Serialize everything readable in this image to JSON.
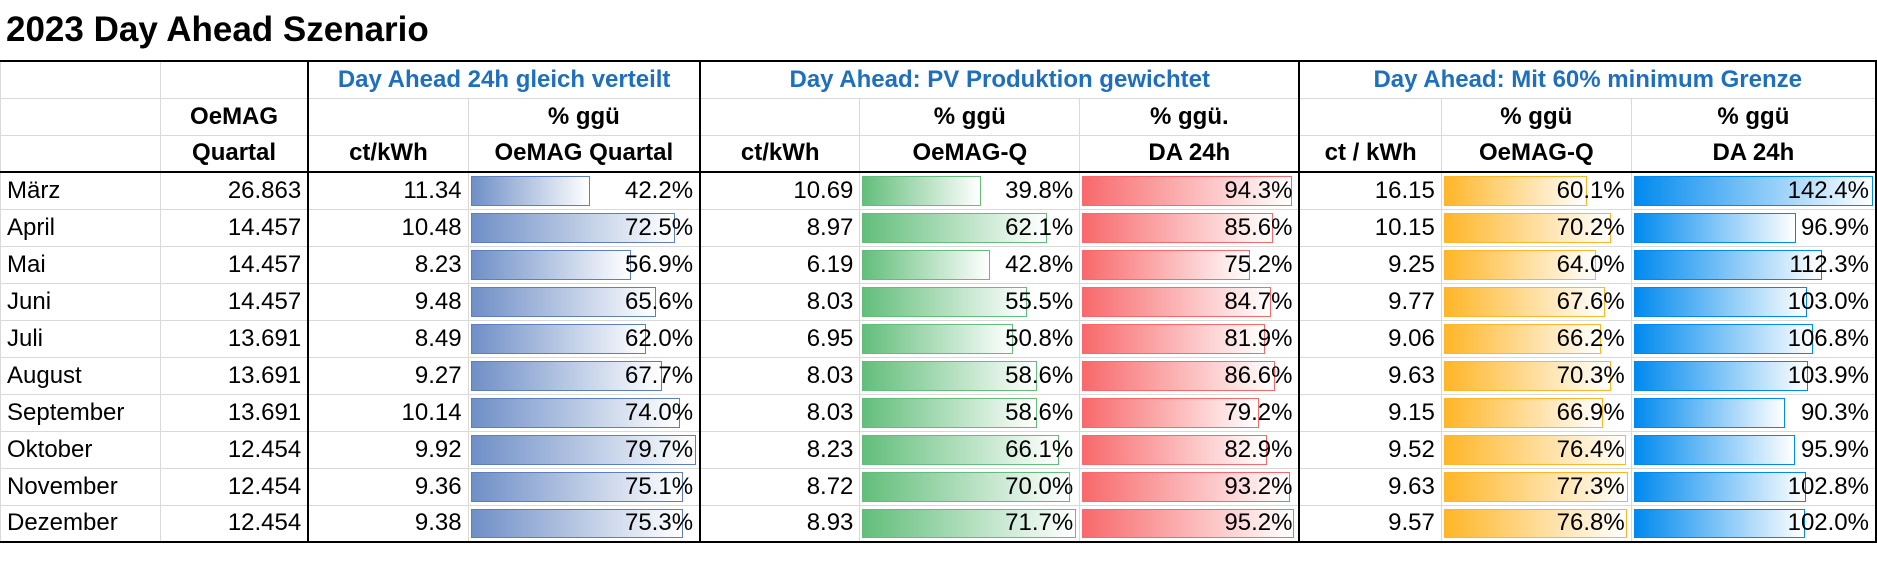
{
  "title": "2023 Day Ahead Szenario",
  "header": {
    "group1": "Day Ahead 24h gleich verteilt",
    "group2": "Day Ahead: PV Produktion gewichtet",
    "group3": "Day Ahead: Mit 60% minimum Grenze",
    "oemag_1": "OeMAG",
    "oemag_2": "Quartal",
    "g1_c1": "ct/kWh",
    "g1_c2a": "% ggü",
    "g1_c2b": "OeMAG Quartal",
    "g2_c1": "ct/kWh",
    "g2_c2a": "% ggü",
    "g2_c2b": "OeMAG-Q",
    "g2_c3a": "% ggü.",
    "g2_c3b": "DA 24h",
    "g3_c1": "ct / kWh",
    "g3_c2a": "% ggü",
    "g3_c2b": "OeMAG-Q",
    "g3_c3a": "% ggü",
    "g3_c3b": "DA 24h"
  },
  "bar_colors": {
    "g1": "#6f8fc7",
    "g2a": "#63be7b",
    "g2b": "#f8696b",
    "g3a": "#ffb628",
    "g3b": "#008aef"
  },
  "rows": [
    {
      "month": "März",
      "oemag": "26.863",
      "g1_ct": "11.34",
      "g1_pct": "42.2%",
      "g2_ct": "10.69",
      "g2_pct": "39.8%",
      "g2_da": "94.3%",
      "g3_ct": "16.15",
      "g3_pct": "60.1%",
      "g3_da": "142.4%"
    },
    {
      "month": "April",
      "oemag": "14.457",
      "g1_ct": "10.48",
      "g1_pct": "72.5%",
      "g2_ct": "8.97",
      "g2_pct": "62.1%",
      "g2_da": "85.6%",
      "g3_ct": "10.15",
      "g3_pct": "70.2%",
      "g3_da": "96.9%"
    },
    {
      "month": "Mai",
      "oemag": "14.457",
      "g1_ct": "8.23",
      "g1_pct": "56.9%",
      "g2_ct": "6.19",
      "g2_pct": "42.8%",
      "g2_da": "75.2%",
      "g3_ct": "9.25",
      "g3_pct": "64.0%",
      "g3_da": "112.3%"
    },
    {
      "month": "Juni",
      "oemag": "14.457",
      "g1_ct": "9.48",
      "g1_pct": "65.6%",
      "g2_ct": "8.03",
      "g2_pct": "55.5%",
      "g2_da": "84.7%",
      "g3_ct": "9.77",
      "g3_pct": "67.6%",
      "g3_da": "103.0%"
    },
    {
      "month": "Juli",
      "oemag": "13.691",
      "g1_ct": "8.49",
      "g1_pct": "62.0%",
      "g2_ct": "6.95",
      "g2_pct": "50.8%",
      "g2_da": "81.9%",
      "g3_ct": "9.06",
      "g3_pct": "66.2%",
      "g3_da": "106.8%"
    },
    {
      "month": "August",
      "oemag": "13.691",
      "g1_ct": "9.27",
      "g1_pct": "67.7%",
      "g2_ct": "8.03",
      "g2_pct": "58.6%",
      "g2_da": "86.6%",
      "g3_ct": "9.63",
      "g3_pct": "70.3%",
      "g3_da": "103.9%"
    },
    {
      "month": "September",
      "oemag": "13.691",
      "g1_ct": "10.14",
      "g1_pct": "74.0%",
      "g2_ct": "8.03",
      "g2_pct": "58.6%",
      "g2_da": "79.2%",
      "g3_ct": "9.15",
      "g3_pct": "66.9%",
      "g3_da": "90.3%"
    },
    {
      "month": "Oktober",
      "oemag": "12.454",
      "g1_ct": "9.92",
      "g1_pct": "79.7%",
      "g2_ct": "8.23",
      "g2_pct": "66.1%",
      "g2_da": "82.9%",
      "g3_ct": "9.52",
      "g3_pct": "76.4%",
      "g3_da": "95.9%"
    },
    {
      "month": "November",
      "oemag": "12.454",
      "g1_ct": "9.36",
      "g1_pct": "75.1%",
      "g2_ct": "8.72",
      "g2_pct": "70.0%",
      "g2_da": "93.2%",
      "g3_ct": "9.63",
      "g3_pct": "77.3%",
      "g3_da": "102.8%"
    },
    {
      "month": "Dezember",
      "oemag": "12.454",
      "g1_ct": "9.38",
      "g1_pct": "75.3%",
      "g2_ct": "8.93",
      "g2_pct": "71.7%",
      "g2_da": "95.2%",
      "g3_ct": "9.57",
      "g3_pct": "76.8%",
      "g3_da": "102.0%"
    }
  ]
}
